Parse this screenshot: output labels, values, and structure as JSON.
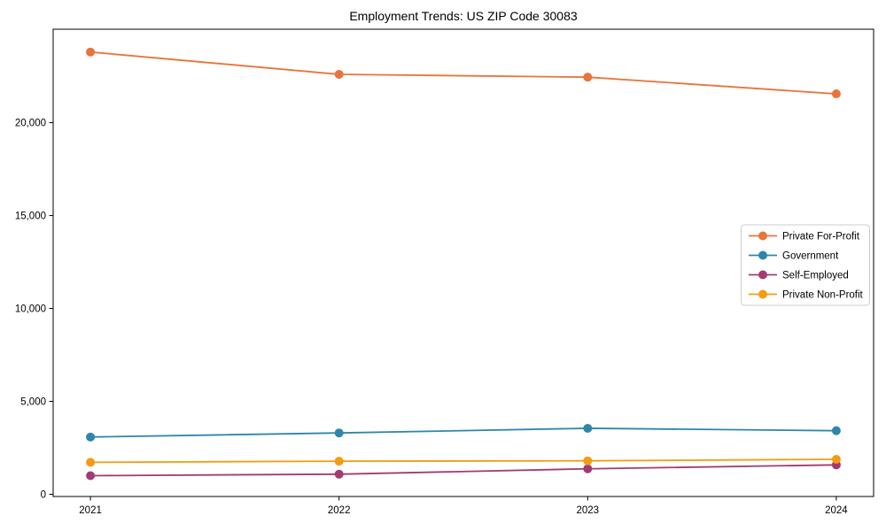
{
  "figure": {
    "background": "#ffffff",
    "axis_color": "#000000",
    "legend_border_color": "#cccccc",
    "legend_background": "#ffffff"
  },
  "chart_data": {
    "type": "line",
    "title": "Employment Trends: US ZIP Code 30083",
    "xlabel": "",
    "ylabel": "",
    "x": [
      2021,
      2022,
      2023,
      2024
    ],
    "xtick_labels": [
      "2021",
      "2022",
      "2023",
      "2024"
    ],
    "xlim": [
      2020.85,
      2024.15
    ],
    "ylim": [
      -120,
      25030
    ],
    "yticks": [
      0,
      5000,
      10000,
      15000,
      20000
    ],
    "ytick_labels": [
      "0",
      "5,000",
      "10,000",
      "15,000",
      "20,000"
    ],
    "grid": false,
    "marker": "circle",
    "legend_position": "center-right",
    "series": [
      {
        "name": "Private For-Profit",
        "color": "#E8743B",
        "values": [
          23800,
          22600,
          22450,
          21550
        ]
      },
      {
        "name": "Government",
        "color": "#2E86AB",
        "values": [
          3080,
          3300,
          3550,
          3420
        ]
      },
      {
        "name": "Self-Employed",
        "color": "#A23B72",
        "values": [
          1000,
          1080,
          1370,
          1580
        ]
      },
      {
        "name": "Private Non-Profit",
        "color": "#F39C12",
        "values": [
          1720,
          1780,
          1800,
          1880
        ]
      }
    ]
  }
}
